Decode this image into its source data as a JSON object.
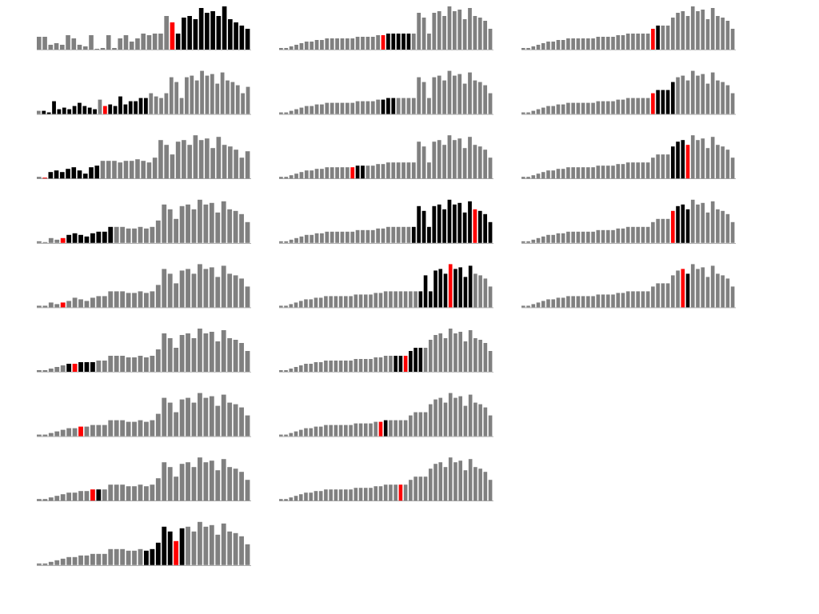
{
  "colors": {
    "unsorted": "#808080",
    "active": "#000000",
    "pivot": "#ff0000",
    "background": "#ffffff"
  },
  "chart_data": [
    {
      "type": "bar",
      "values": [
        16,
        16,
        6,
        8,
        6,
        18,
        14,
        6,
        4,
        18,
        0,
        2,
        18,
        2,
        14,
        18,
        10,
        14,
        20,
        18,
        20,
        20,
        42,
        34,
        20,
        40,
        42,
        38,
        52,
        46,
        48,
        42,
        54,
        38,
        34,
        30,
        26
      ],
      "states": "gggggggggggggggggggggggpaaaaaaaaaaaaaa"
    },
    {
      "type": "bar",
      "values": [
        4,
        4,
        2,
        16,
        6,
        8,
        6,
        10,
        14,
        10,
        8,
        6,
        18,
        10,
        12,
        10,
        22,
        12,
        16,
        16,
        20,
        20,
        26,
        22,
        20,
        26,
        46,
        40,
        20,
        46,
        48,
        42,
        54,
        48,
        50,
        38,
        52,
        42,
        40,
        36,
        26,
        34
      ],
      "states": "gaaaaaaaaaaagpaaaaaaaag"
    },
    {
      "type": "bar",
      "values": [
        2,
        0,
        8,
        10,
        8,
        12,
        14,
        10,
        6,
        14,
        16,
        22,
        22,
        22,
        20,
        22,
        22,
        24,
        22,
        20,
        26,
        48,
        42,
        30,
        46,
        48,
        42,
        54,
        48,
        50,
        38,
        52,
        42,
        40,
        36,
        26,
        34
      ],
      "states": "gpaaaaaaaaagggg"
    },
    {
      "type": "bar",
      "values": [
        2,
        0,
        6,
        4,
        6,
        10,
        12,
        10,
        8,
        12,
        14,
        14,
        20,
        20,
        20,
        18,
        18,
        20,
        18,
        20,
        28,
        48,
        42,
        30,
        46,
        48,
        42,
        54,
        48,
        50,
        38,
        52,
        42,
        40,
        36,
        26
      ],
      "states": "ggggpaaaaaaaa"
    },
    {
      "type": "bar",
      "values": [
        2,
        2,
        6,
        4,
        6,
        8,
        12,
        10,
        8,
        12,
        14,
        14,
        20,
        20,
        20,
        18,
        18,
        20,
        18,
        20,
        28,
        48,
        42,
        30,
        46,
        48,
        42,
        54,
        48,
        50,
        38,
        52,
        42,
        40,
        36,
        26
      ],
      "states": "ggggp"
    },
    {
      "type": "bar",
      "values": [
        2,
        2,
        4,
        6,
        8,
        10,
        10,
        12,
        12,
        12,
        14,
        14,
        20,
        20,
        20,
        18,
        18,
        20,
        18,
        20,
        28,
        48,
        42,
        30,
        46,
        48,
        42,
        54,
        48,
        50,
        38,
        52,
        42,
        40,
        36,
        26
      ],
      "states": "gggggapaaa"
    },
    {
      "type": "bar",
      "values": [
        2,
        2,
        4,
        6,
        8,
        10,
        10,
        12,
        12,
        14,
        14,
        14,
        20,
        20,
        20,
        18,
        18,
        20,
        18,
        20,
        28,
        48,
        42,
        30,
        46,
        48,
        42,
        54,
        48,
        50,
        38,
        52,
        42,
        40,
        36,
        26
      ],
      "states": "gggggggp"
    },
    {
      "type": "bar",
      "values": [
        2,
        2,
        4,
        6,
        8,
        10,
        10,
        12,
        12,
        14,
        14,
        14,
        20,
        20,
        20,
        18,
        18,
        20,
        18,
        20,
        28,
        48,
        42,
        30,
        46,
        48,
        42,
        54,
        48,
        50,
        38,
        52,
        42,
        40,
        36,
        26
      ],
      "states": "gggggggggpa"
    },
    {
      "type": "bar",
      "values": [
        2,
        2,
        4,
        6,
        8,
        10,
        10,
        12,
        12,
        14,
        14,
        14,
        20,
        20,
        20,
        18,
        18,
        20,
        18,
        20,
        28,
        48,
        42,
        30,
        46,
        48,
        42,
        54,
        48,
        50,
        38,
        52,
        42,
        40,
        36,
        26
      ],
      "states": "ggggggggggggggggggaaaaapa"
    },
    {
      "type": "bar",
      "values": [
        2,
        2,
        4,
        6,
        8,
        10,
        10,
        12,
        12,
        14,
        14,
        14,
        14,
        14,
        14,
        16,
        16,
        16,
        16,
        18,
        18,
        20,
        20,
        20,
        20,
        20,
        20,
        46,
        40,
        20,
        46,
        48,
        42,
        54,
        48,
        50,
        38,
        52,
        42,
        40,
        36,
        26
      ],
      "states": "ggggggggggggggggggggpaaaaa"
    },
    {
      "type": "bar",
      "values": [
        2,
        2,
        4,
        6,
        8,
        10,
        10,
        12,
        12,
        14,
        14,
        14,
        14,
        14,
        14,
        16,
        16,
        16,
        16,
        18,
        18,
        20,
        20,
        20,
        20,
        20,
        20,
        46,
        40,
        20,
        46,
        48,
        42,
        54,
        48,
        50,
        38,
        52,
        42,
        40,
        36,
        26
      ],
      "states": "ggggggggggggggggggggaaag"
    },
    {
      "type": "bar",
      "values": [
        2,
        2,
        4,
        6,
        8,
        10,
        10,
        12,
        12,
        14,
        14,
        14,
        14,
        14,
        14,
        16,
        16,
        16,
        16,
        18,
        18,
        20,
        20,
        20,
        20,
        20,
        20,
        46,
        40,
        20,
        46,
        48,
        42,
        54,
        48,
        50,
        38,
        52,
        42,
        40,
        36,
        26
      ],
      "states": "ggggggggggggggpaag"
    },
    {
      "type": "bar",
      "values": [
        2,
        2,
        4,
        6,
        8,
        10,
        10,
        12,
        12,
        14,
        14,
        14,
        14,
        14,
        14,
        16,
        16,
        16,
        16,
        18,
        18,
        20,
        20,
        20,
        20,
        20,
        20,
        46,
        40,
        20,
        46,
        48,
        42,
        54,
        48,
        50,
        38,
        52,
        42,
        40,
        36,
        26
      ],
      "states": "ggggggggggggggggggggggggggaaaaaaaaaaaapaaaa"
    },
    {
      "type": "bar",
      "values": [
        2,
        2,
        4,
        6,
        8,
        10,
        10,
        12,
        12,
        14,
        14,
        14,
        14,
        14,
        14,
        16,
        16,
        16,
        16,
        18,
        18,
        20,
        20,
        20,
        20,
        20,
        20,
        20,
        20,
        40,
        20,
        46,
        48,
        42,
        54,
        48,
        50,
        38,
        52,
        42,
        40,
        36,
        26
      ],
      "states": "ggggggggggggggggggggggggggggaaaaaapaaaa"
    },
    {
      "type": "bar",
      "values": [
        2,
        2,
        4,
        6,
        8,
        10,
        10,
        12,
        12,
        14,
        14,
        14,
        14,
        14,
        14,
        16,
        16,
        16,
        16,
        18,
        18,
        20,
        20,
        20,
        20,
        20,
        26,
        30,
        30,
        30,
        40,
        46,
        48,
        42,
        54,
        48,
        50,
        38,
        52,
        42,
        40,
        36,
        26
      ],
      "states": "gggggggggggggggggggggggaapaaa"
    },
    {
      "type": "bar",
      "values": [
        2,
        2,
        4,
        6,
        8,
        10,
        10,
        12,
        12,
        14,
        14,
        14,
        14,
        14,
        14,
        16,
        16,
        16,
        16,
        18,
        18,
        20,
        20,
        20,
        20,
        20,
        26,
        30,
        30,
        30,
        40,
        46,
        48,
        42,
        54,
        48,
        50,
        38,
        52,
        42,
        40,
        36,
        26
      ],
      "states": "ggggggggggggggggggggpa"
    },
    {
      "type": "bar",
      "values": [
        2,
        2,
        4,
        6,
        8,
        10,
        10,
        12,
        12,
        14,
        14,
        14,
        14,
        14,
        14,
        16,
        16,
        16,
        16,
        18,
        18,
        20,
        20,
        20,
        20,
        20,
        26,
        30,
        30,
        30,
        40,
        46,
        48,
        42,
        54,
        48,
        50,
        38,
        52,
        42,
        40,
        36,
        26
      ],
      "states": "ggggggggggggggggggggggggp"
    },
    {
      "type": "bar",
      "values": [
        2,
        2,
        4,
        6,
        8,
        10,
        10,
        12,
        12,
        14,
        14,
        14,
        14,
        14,
        14,
        16,
        16,
        16,
        16,
        18,
        18,
        20,
        20,
        20,
        20,
        20,
        26,
        30,
        30,
        30,
        40,
        46,
        48,
        42,
        54,
        48,
        50,
        38,
        52,
        42,
        40,
        36,
        26
      ],
      "states": "ggggggggggggggggggggggggggpa"
    },
    {
      "type": "bar",
      "values": [
        2,
        2,
        4,
        6,
        8,
        10,
        10,
        12,
        12,
        14,
        14,
        14,
        14,
        14,
        14,
        16,
        16,
        16,
        16,
        18,
        18,
        20,
        20,
        20,
        20,
        20,
        26,
        30,
        30,
        30,
        40,
        46,
        48,
        42,
        54,
        48,
        50,
        38,
        52,
        42,
        40,
        36,
        26
      ],
      "states": "ggggggggggggggggggggggggggpaaaa"
    },
    {
      "type": "bar",
      "values": [
        2,
        2,
        4,
        6,
        8,
        10,
        10,
        12,
        12,
        14,
        14,
        14,
        14,
        14,
        14,
        16,
        16,
        16,
        16,
        18,
        18,
        20,
        20,
        20,
        20,
        20,
        26,
        30,
        30,
        30,
        40,
        46,
        48,
        42,
        54,
        48,
        50,
        38,
        52,
        42,
        40,
        36,
        26
      ],
      "states": "ggggggggggggggggggggggggggggggaaap"
    },
    {
      "type": "bar",
      "values": [
        2,
        2,
        4,
        6,
        8,
        10,
        10,
        12,
        12,
        14,
        14,
        14,
        14,
        14,
        14,
        16,
        16,
        16,
        16,
        18,
        18,
        20,
        20,
        20,
        20,
        20,
        26,
        30,
        30,
        30,
        40,
        46,
        48,
        42,
        54,
        48,
        50,
        38,
        52,
        42,
        40,
        36,
        26
      ],
      "states": "ggggggggggggggggggggggggggggggpaaa"
    },
    {
      "type": "bar",
      "values": [
        2,
        2,
        4,
        6,
        8,
        10,
        10,
        12,
        12,
        14,
        14,
        14,
        14,
        14,
        14,
        16,
        16,
        16,
        16,
        18,
        18,
        20,
        20,
        20,
        20,
        20,
        26,
        30,
        30,
        30,
        40,
        46,
        48,
        42,
        54,
        48,
        50,
        38,
        52,
        42,
        40,
        36,
        26
      ],
      "states": "ggggggggggggggggggggggggggggggggpa"
    }
  ]
}
